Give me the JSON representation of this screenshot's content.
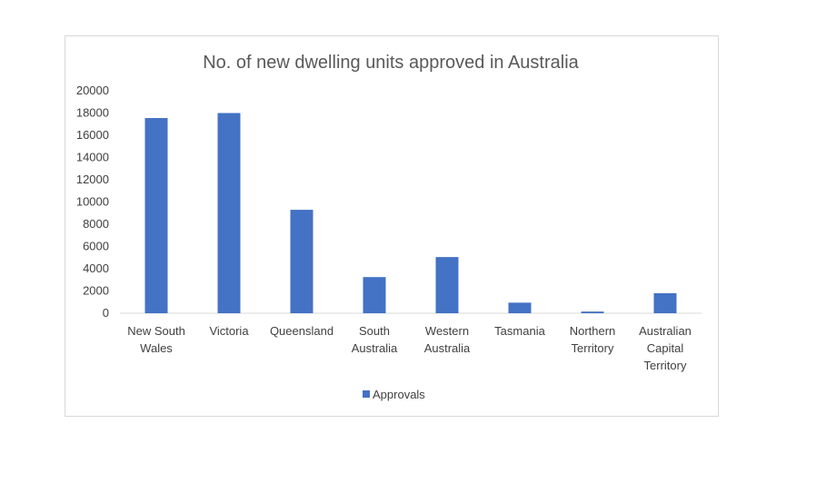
{
  "chart_data": {
    "type": "bar",
    "title": "No. of new dwelling units approved in Australia",
    "categories": [
      [
        "New South",
        "Wales"
      ],
      [
        "Victoria"
      ],
      [
        "Queensland"
      ],
      [
        "South",
        "Australia"
      ],
      [
        "Western",
        "Australia"
      ],
      [
        "Tasmania"
      ],
      [
        "Northern",
        "Territory"
      ],
      [
        "Australian",
        "Capital",
        "Territory"
      ]
    ],
    "series": [
      {
        "name": "Approvals",
        "color": "#4472c4",
        "values": [
          17550,
          18000,
          9300,
          3250,
          5050,
          950,
          150,
          1800
        ]
      }
    ],
    "ylim": [
      0,
      20000
    ],
    "yticks": [
      0,
      2000,
      4000,
      6000,
      8000,
      10000,
      12000,
      14000,
      16000,
      18000,
      20000
    ],
    "grid": false,
    "legend_position": "bottom"
  }
}
